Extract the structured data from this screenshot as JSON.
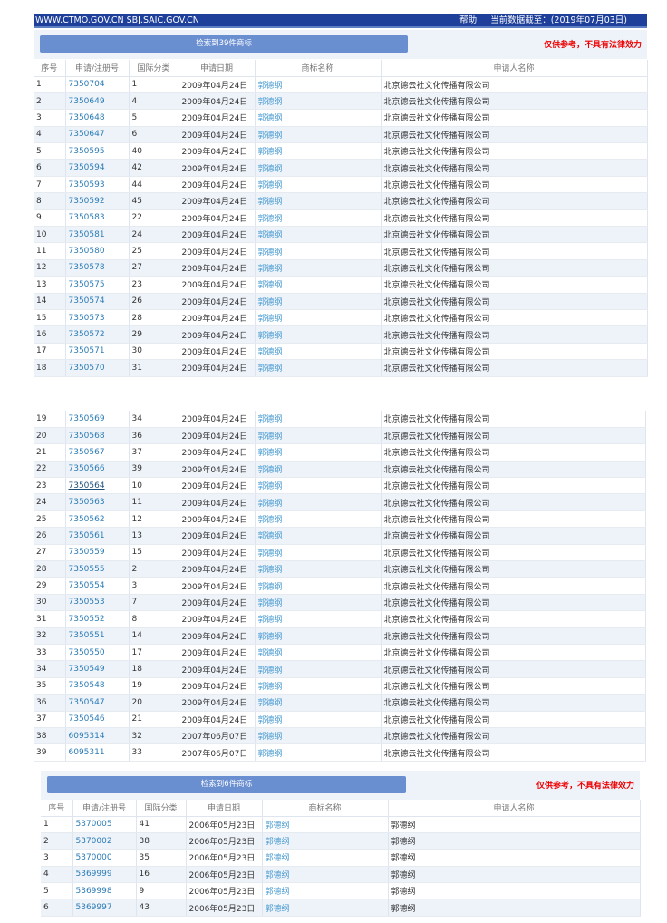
{
  "topbar": {
    "site": "WWW.CTMO.GOV.CN SBJ.SAIC.GOV.CN",
    "help": "帮助",
    "data_date": "当前数据截至：(2019年07月03日)"
  },
  "columns": [
    "序号",
    "申请/注册号",
    "国际分类",
    "申请日期",
    "商标名称",
    "申请人名称"
  ],
  "section1": {
    "count_label": "检索到39件商标",
    "notice": "仅供参考，不具有法律效力"
  },
  "section2": {
    "count_label": "检索到6件商标",
    "notice": "仅供参考，不具有法律效力"
  },
  "rows_a": [
    [
      "1",
      "7350704",
      "1",
      "2009年04月24日",
      "郭德纲",
      "北京德云社文化传播有限公司"
    ],
    [
      "2",
      "7350649",
      "4",
      "2009年04月24日",
      "郭德纲",
      "北京德云社文化传播有限公司"
    ],
    [
      "3",
      "7350648",
      "5",
      "2009年04月24日",
      "郭德纲",
      "北京德云社文化传播有限公司"
    ],
    [
      "4",
      "7350647",
      "6",
      "2009年04月24日",
      "郭德纲",
      "北京德云社文化传播有限公司"
    ],
    [
      "5",
      "7350595",
      "40",
      "2009年04月24日",
      "郭德纲",
      "北京德云社文化传播有限公司"
    ],
    [
      "6",
      "7350594",
      "42",
      "2009年04月24日",
      "郭德纲",
      "北京德云社文化传播有限公司"
    ],
    [
      "7",
      "7350593",
      "44",
      "2009年04月24日",
      "郭德纲",
      "北京德云社文化传播有限公司"
    ],
    [
      "8",
      "7350592",
      "45",
      "2009年04月24日",
      "郭德纲",
      "北京德云社文化传播有限公司"
    ],
    [
      "9",
      "7350583",
      "22",
      "2009年04月24日",
      "郭德纲",
      "北京德云社文化传播有限公司"
    ],
    [
      "10",
      "7350581",
      "24",
      "2009年04月24日",
      "郭德纲",
      "北京德云社文化传播有限公司"
    ],
    [
      "11",
      "7350580",
      "25",
      "2009年04月24日",
      "郭德纲",
      "北京德云社文化传播有限公司"
    ],
    [
      "12",
      "7350578",
      "27",
      "2009年04月24日",
      "郭德纲",
      "北京德云社文化传播有限公司"
    ],
    [
      "13",
      "7350575",
      "23",
      "2009年04月24日",
      "郭德纲",
      "北京德云社文化传播有限公司"
    ],
    [
      "14",
      "7350574",
      "26",
      "2009年04月24日",
      "郭德纲",
      "北京德云社文化传播有限公司"
    ],
    [
      "15",
      "7350573",
      "28",
      "2009年04月24日",
      "郭德纲",
      "北京德云社文化传播有限公司"
    ],
    [
      "16",
      "7350572",
      "29",
      "2009年04月24日",
      "郭德纲",
      "北京德云社文化传播有限公司"
    ],
    [
      "17",
      "7350571",
      "30",
      "2009年04月24日",
      "郭德纲",
      "北京德云社文化传播有限公司"
    ],
    [
      "18",
      "7350570",
      "31",
      "2009年04月24日",
      "郭德纲",
      "北京德云社文化传播有限公司"
    ]
  ],
  "rows_b": [
    [
      "19",
      "7350569",
      "34",
      "2009年04月24日",
      "郭德纲",
      "北京德云社文化传播有限公司"
    ],
    [
      "20",
      "7350568",
      "36",
      "2009年04月24日",
      "郭德纲",
      "北京德云社文化传播有限公司"
    ],
    [
      "21",
      "7350567",
      "37",
      "2009年04月24日",
      "郭德纲",
      "北京德云社文化传播有限公司"
    ],
    [
      "22",
      "7350566",
      "39",
      "2009年04月24日",
      "郭德纲",
      "北京德云社文化传播有限公司"
    ],
    [
      "23",
      "7350564",
      "10",
      "2009年04月24日",
      "郭德纲",
      "北京德云社文化传播有限公司"
    ],
    [
      "24",
      "7350563",
      "11",
      "2009年04月24日",
      "郭德纲",
      "北京德云社文化传播有限公司"
    ],
    [
      "25",
      "7350562",
      "12",
      "2009年04月24日",
      "郭德纲",
      "北京德云社文化传播有限公司"
    ],
    [
      "26",
      "7350561",
      "13",
      "2009年04月24日",
      "郭德纲",
      "北京德云社文化传播有限公司"
    ],
    [
      "27",
      "7350559",
      "15",
      "2009年04月24日",
      "郭德纲",
      "北京德云社文化传播有限公司"
    ],
    [
      "28",
      "7350555",
      "2",
      "2009年04月24日",
      "郭德纲",
      "北京德云社文化传播有限公司"
    ],
    [
      "29",
      "7350554",
      "3",
      "2009年04月24日",
      "郭德纲",
      "北京德云社文化传播有限公司"
    ],
    [
      "30",
      "7350553",
      "7",
      "2009年04月24日",
      "郭德纲",
      "北京德云社文化传播有限公司"
    ],
    [
      "31",
      "7350552",
      "8",
      "2009年04月24日",
      "郭德纲",
      "北京德云社文化传播有限公司"
    ],
    [
      "32",
      "7350551",
      "14",
      "2009年04月24日",
      "郭德纲",
      "北京德云社文化传播有限公司"
    ],
    [
      "33",
      "7350550",
      "17",
      "2009年04月24日",
      "郭德纲",
      "北京德云社文化传播有限公司"
    ],
    [
      "34",
      "7350549",
      "18",
      "2009年04月24日",
      "郭德纲",
      "北京德云社文化传播有限公司"
    ],
    [
      "35",
      "7350548",
      "19",
      "2009年04月24日",
      "郭德纲",
      "北京德云社文化传播有限公司"
    ],
    [
      "36",
      "7350547",
      "20",
      "2009年04月24日",
      "郭德纲",
      "北京德云社文化传播有限公司"
    ],
    [
      "37",
      "7350546",
      "21",
      "2009年04月24日",
      "郭德纲",
      "北京德云社文化传播有限公司"
    ],
    [
      "38",
      "6095314",
      "32",
      "2007年06月07日",
      "郭德纲",
      "北京德云社文化传播有限公司"
    ],
    [
      "39",
      "6095311",
      "33",
      "2007年06月07日",
      "郭德纲",
      "北京德云社文化传播有限公司"
    ]
  ],
  "rows_c": [
    [
      "1",
      "5370005",
      "41",
      "2006年05月23日",
      "郭德纲",
      "郭德纲"
    ],
    [
      "2",
      "5370002",
      "38",
      "2006年05月23日",
      "郭德纲",
      "郭德纲"
    ],
    [
      "3",
      "5370000",
      "35",
      "2006年05月23日",
      "郭德纲",
      "郭德纲"
    ],
    [
      "4",
      "5369999",
      "16",
      "2006年05月23日",
      "郭德纲",
      "郭德纲"
    ],
    [
      "5",
      "5369998",
      "9",
      "2006年05月23日",
      "郭德纲",
      "郭德纲"
    ],
    [
      "6",
      "5369997",
      "43",
      "2006年05月23日",
      "郭德纲",
      "郭德纲"
    ]
  ]
}
